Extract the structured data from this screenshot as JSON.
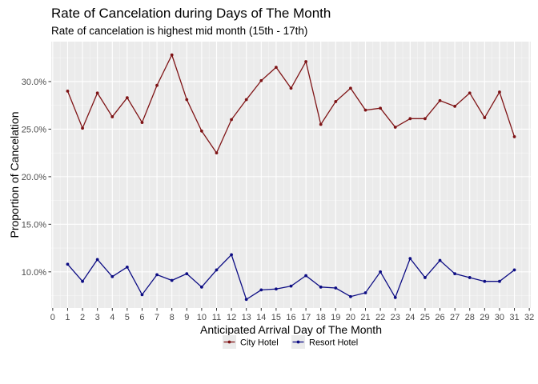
{
  "chart_data": {
    "type": "line",
    "title": "Rate of Cancelation during Days of The Month",
    "subtitle": "Rate of cancelation is highest mid month (15th - 17th)",
    "xlabel": "Anticipated Arrival Day of The Month",
    "ylabel": "Proportion of Cancelation",
    "xlim": [
      -0.1,
      32.1
    ],
    "ylim": [
      0.062,
      0.342
    ],
    "x_ticks": [
      0,
      1,
      2,
      3,
      4,
      5,
      6,
      7,
      8,
      9,
      10,
      11,
      12,
      13,
      14,
      15,
      16,
      17,
      18,
      19,
      20,
      21,
      22,
      23,
      24,
      25,
      26,
      27,
      28,
      29,
      30,
      31,
      32
    ],
    "y_ticks": [
      0.1,
      0.15,
      0.2,
      0.25,
      0.3
    ],
    "y_tick_labels": [
      "10.0%",
      "15.0%",
      "20.0%",
      "25.0%",
      "30.0%"
    ],
    "grid": true,
    "legend_position": "bottom",
    "x": [
      1,
      2,
      3,
      4,
      5,
      6,
      7,
      8,
      9,
      10,
      11,
      12,
      13,
      14,
      15,
      16,
      17,
      18,
      19,
      20,
      21,
      22,
      23,
      24,
      25,
      26,
      27,
      28,
      29,
      30,
      31
    ],
    "series": [
      {
        "name": "City Hotel",
        "color": "#7f1416",
        "values": [
          0.29,
          0.251,
          0.288,
          0.263,
          0.283,
          0.257,
          0.296,
          0.328,
          0.281,
          0.248,
          0.225,
          0.26,
          0.281,
          0.301,
          0.315,
          0.293,
          0.321,
          0.255,
          0.279,
          0.293,
          0.27,
          0.272,
          0.252,
          0.261,
          0.261,
          0.28,
          0.274,
          0.288,
          0.262,
          0.289,
          0.242
        ]
      },
      {
        "name": "Resort Hotel",
        "color": "#0d0d84",
        "values": [
          0.108,
          0.09,
          0.113,
          0.095,
          0.105,
          0.076,
          0.097,
          0.091,
          0.098,
          0.084,
          0.102,
          0.118,
          0.071,
          0.081,
          0.082,
          0.085,
          0.096,
          0.084,
          0.083,
          0.074,
          0.078,
          0.1,
          0.073,
          0.114,
          0.094,
          0.112,
          0.098,
          0.094,
          0.09,
          0.09,
          0.102
        ]
      }
    ]
  }
}
